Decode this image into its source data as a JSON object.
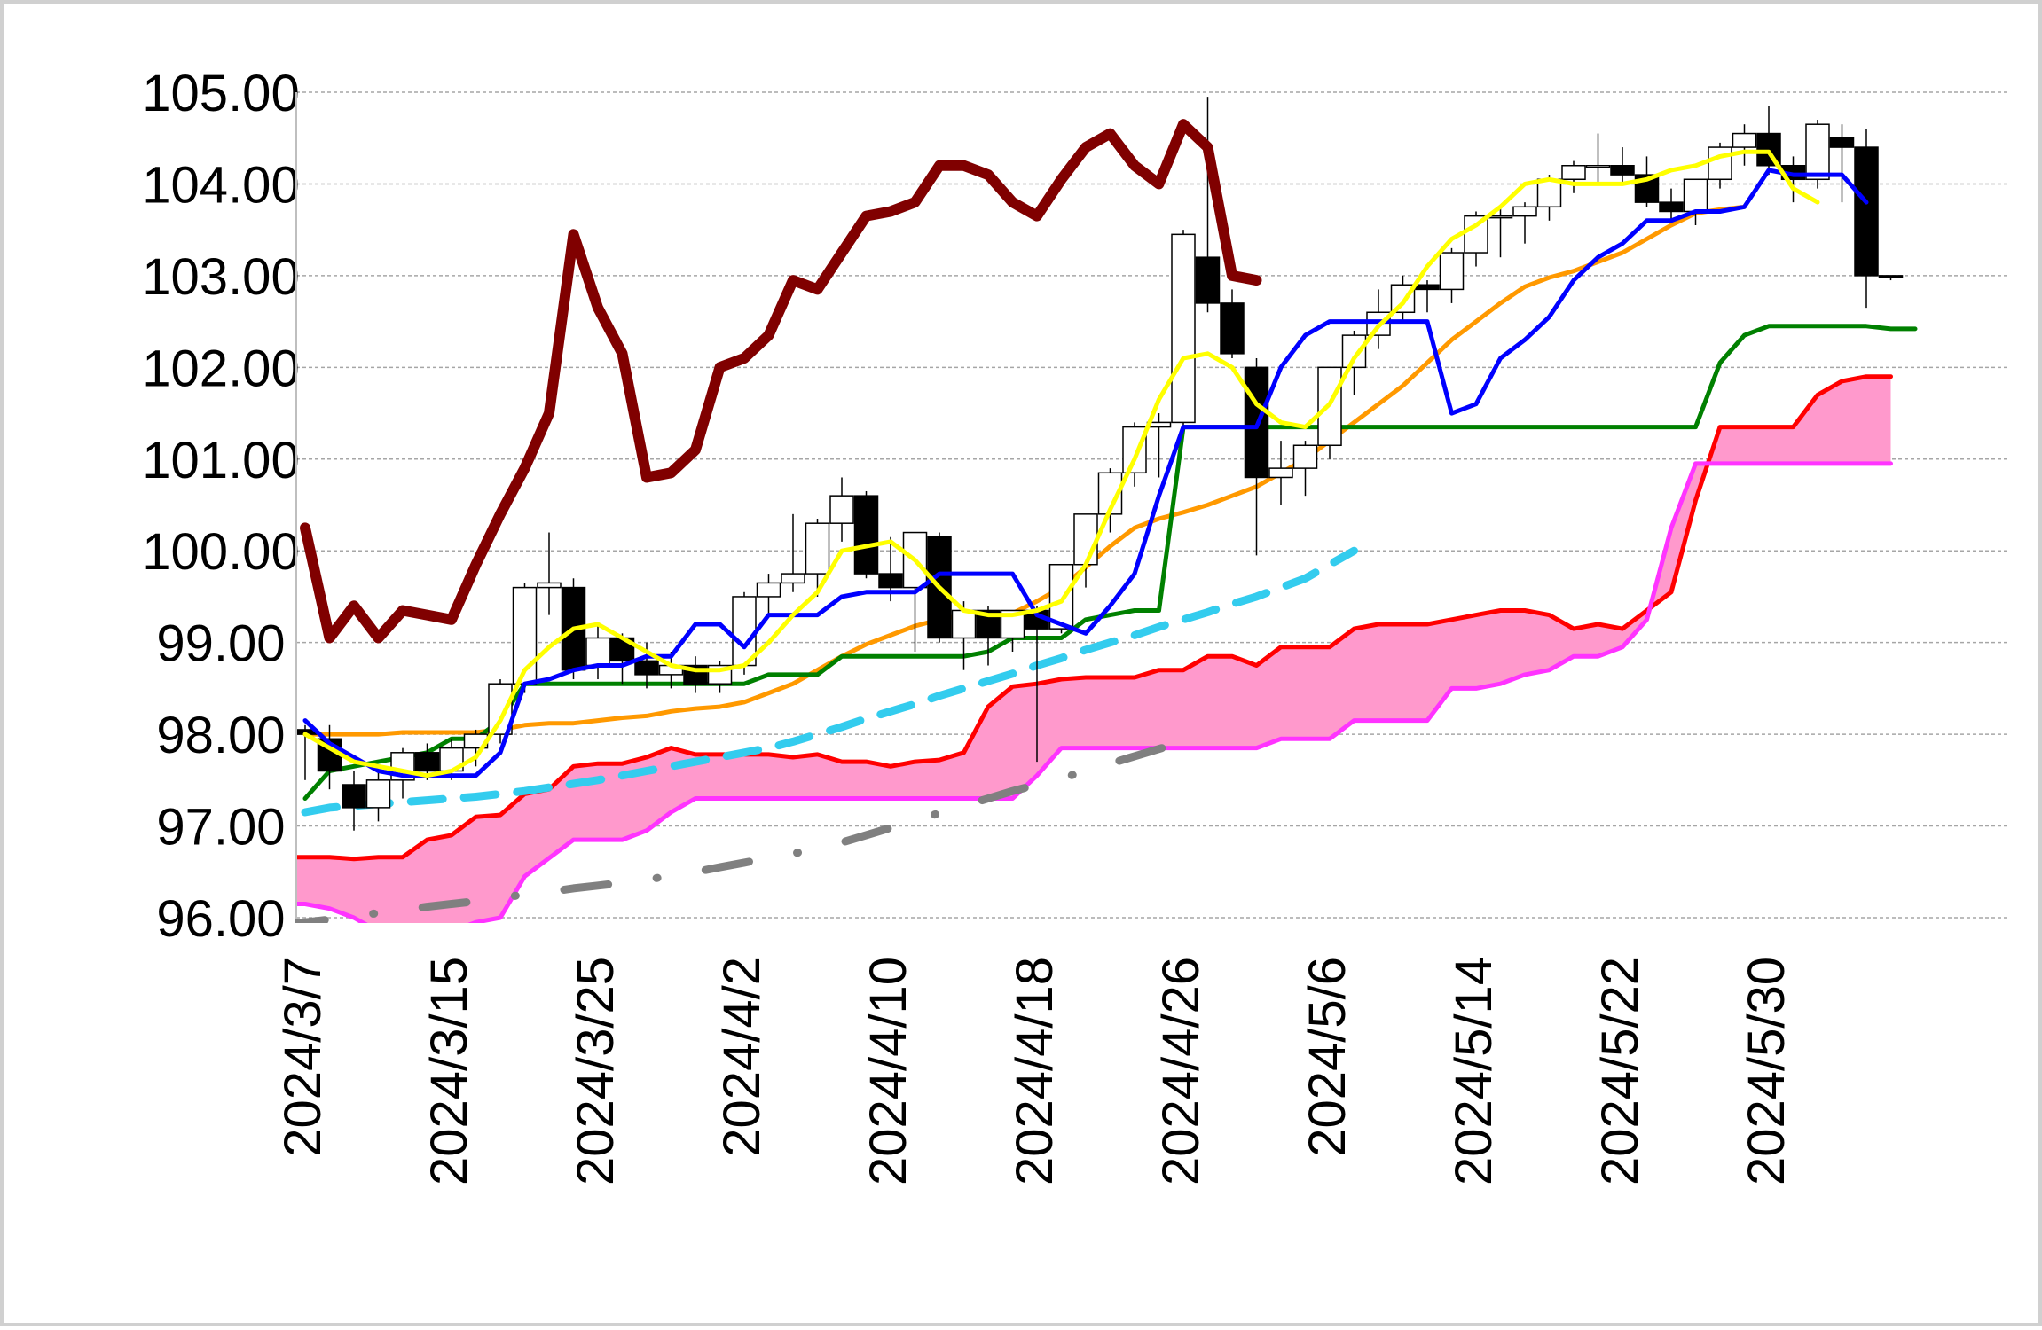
{
  "chart_data": {
    "type": "line",
    "chart_kind": "candlestick with ichimoku cloud and moving averages",
    "y_range": [
      96.0,
      105.0
    ],
    "y_ticks": [
      "105.00",
      "104.00",
      "103.00",
      "102.00",
      "101.00",
      "100.00",
      "99.00",
      "98.00",
      "97.00",
      "96.00"
    ],
    "x_tick_labels": [
      "2024/3/7",
      "2024/3/15",
      "2024/3/25",
      "2024/4/2",
      "2024/4/10",
      "2024/4/18",
      "2024/4/26",
      "2024/5/6",
      "2024/5/14",
      "2024/5/22",
      "2024/5/30"
    ],
    "x_tick_indices": [
      0,
      6,
      12,
      18,
      24,
      30,
      36,
      42,
      48,
      54,
      60
    ],
    "grid": "horizontal dashed",
    "legend": "none",
    "colors": {
      "up_candle": "#ffffff",
      "down_candle": "#000000",
      "candle_edge": "#000000",
      "cloud_fill": "#ff99cc",
      "senkou_a": "#ff0000",
      "senkou_b": "#ff33ff",
      "tenkan": "#0000ff",
      "kijun": "#008000",
      "chikou": "#800000",
      "ma_short": "#ffff00",
      "ma_mid": "#ff9900",
      "ma_cyan": "#33ccee",
      "ma_gray": "#808080"
    },
    "candles": [
      [
        0,
        98.05,
        98.1,
        97.5,
        98.0
      ],
      [
        1,
        97.95,
        98.1,
        97.4,
        97.6
      ],
      [
        2,
        97.45,
        97.6,
        96.95,
        97.2
      ],
      [
        3,
        97.2,
        97.6,
        97.05,
        97.5
      ],
      [
        4,
        97.5,
        97.85,
        97.3,
        97.8
      ],
      [
        5,
        97.8,
        97.9,
        97.5,
        97.6
      ],
      [
        6,
        97.6,
        97.95,
        97.5,
        97.85
      ],
      [
        7,
        97.85,
        98.05,
        97.65,
        98.0
      ],
      [
        8,
        98.0,
        98.6,
        97.9,
        98.55
      ],
      [
        9,
        98.55,
        99.65,
        98.45,
        99.6
      ],
      [
        10,
        99.6,
        100.2,
        99.3,
        99.65
      ],
      [
        11,
        99.6,
        99.7,
        98.6,
        98.7
      ],
      [
        12,
        98.75,
        99.2,
        98.6,
        99.05
      ],
      [
        13,
        99.05,
        99.1,
        98.55,
        98.8
      ],
      [
        14,
        98.8,
        99.0,
        98.5,
        98.65
      ],
      [
        15,
        98.65,
        98.9,
        98.5,
        98.75
      ],
      [
        16,
        98.75,
        98.85,
        98.45,
        98.55
      ],
      [
        17,
        98.55,
        98.8,
        98.45,
        98.75
      ],
      [
        18,
        98.75,
        99.55,
        98.65,
        99.5
      ],
      [
        19,
        99.5,
        99.75,
        99.3,
        99.65
      ],
      [
        20,
        99.65,
        100.4,
        99.55,
        99.75
      ],
      [
        21,
        99.75,
        100.35,
        99.5,
        100.3
      ],
      [
        22,
        100.3,
        100.8,
        100.1,
        100.6
      ],
      [
        23,
        100.6,
        100.65,
        99.7,
        99.75
      ],
      [
        24,
        99.75,
        100.15,
        99.45,
        99.6
      ],
      [
        25,
        99.6,
        100.2,
        98.9,
        100.2
      ],
      [
        26,
        100.15,
        100.2,
        99.0,
        99.05
      ],
      [
        27,
        99.05,
        99.45,
        98.7,
        99.35
      ],
      [
        28,
        99.35,
        99.4,
        98.75,
        99.05
      ],
      [
        29,
        99.05,
        99.35,
        98.9,
        99.35
      ],
      [
        30,
        99.35,
        99.4,
        97.7,
        99.15
      ],
      [
        31,
        99.15,
        99.85,
        99.1,
        99.85
      ],
      [
        32,
        99.85,
        100.4,
        99.6,
        100.4
      ],
      [
        33,
        100.4,
        100.9,
        100.2,
        100.85
      ],
      [
        34,
        100.85,
        101.4,
        100.7,
        101.35
      ],
      [
        35,
        101.35,
        101.5,
        100.8,
        101.4
      ],
      [
        36,
        101.4,
        103.5,
        101.3,
        103.45
      ],
      [
        37,
        103.2,
        104.95,
        102.6,
        102.7
      ],
      [
        38,
        102.7,
        102.85,
        102.1,
        102.15
      ],
      [
        39,
        102.0,
        102.1,
        99.95,
        100.8
      ],
      [
        40,
        100.8,
        101.2,
        100.5,
        100.9
      ],
      [
        41,
        100.9,
        101.2,
        100.6,
        101.15
      ],
      [
        42,
        101.15,
        102.0,
        101.0,
        102.0
      ],
      [
        43,
        102.0,
        102.4,
        101.7,
        102.35
      ],
      [
        44,
        102.35,
        102.85,
        102.2,
        102.6
      ],
      [
        45,
        102.6,
        103.0,
        102.5,
        102.9
      ],
      [
        46,
        102.9,
        102.95,
        102.6,
        102.85
      ],
      [
        47,
        102.85,
        103.3,
        102.7,
        103.25
      ],
      [
        48,
        103.25,
        103.7,
        103.1,
        103.65
      ],
      [
        49,
        103.65,
        103.75,
        103.2,
        103.65
      ],
      [
        50,
        103.65,
        103.8,
        103.35,
        103.75
      ],
      [
        51,
        103.75,
        104.1,
        103.6,
        104.05
      ],
      [
        52,
        104.05,
        104.25,
        103.9,
        104.2
      ],
      [
        53,
        104.2,
        104.55,
        104.0,
        104.2
      ],
      [
        54,
        104.2,
        104.4,
        104.0,
        104.1
      ],
      [
        55,
        104.1,
        104.3,
        103.75,
        103.8
      ],
      [
        56,
        103.8,
        103.95,
        103.6,
        103.7
      ],
      [
        57,
        103.7,
        104.05,
        103.55,
        104.05
      ],
      [
        58,
        104.05,
        104.45,
        103.95,
        104.4
      ],
      [
        59,
        104.4,
        104.65,
        104.2,
        104.55
      ],
      [
        60,
        104.55,
        104.85,
        104.1,
        104.2
      ],
      [
        61,
        104.2,
        104.3,
        103.8,
        104.05
      ],
      [
        62,
        104.05,
        104.7,
        103.95,
        104.65
      ],
      [
        63,
        104.5,
        104.65,
        103.8,
        104.4
      ],
      [
        64,
        104.4,
        104.6,
        102.65,
        103.0
      ],
      [
        65,
        103.0,
        103.0,
        102.95,
        102.98
      ]
    ],
    "series": [
      {
        "key": "chikou",
        "values": [
          100.25,
          99.05,
          99.4,
          99.05,
          99.35,
          99.3,
          99.25,
          99.85,
          100.4,
          100.9,
          101.5,
          103.45,
          102.65,
          102.15,
          100.8,
          100.85,
          101.1,
          102.0,
          102.1,
          102.35,
          102.95,
          102.85,
          103.25,
          103.65,
          103.7,
          103.8,
          104.2,
          104.2,
          104.1,
          103.8,
          103.65,
          104.05,
          104.4,
          104.55,
          104.2,
          104.0,
          104.65,
          104.4,
          103.0,
          102.95
        ]
      },
      {
        "key": "tenkan",
        "values": [
          98.15,
          97.9,
          97.75,
          97.6,
          97.55,
          97.55,
          97.55,
          97.55,
          97.8,
          98.55,
          98.6,
          98.7,
          98.75,
          98.75,
          98.85,
          98.85,
          99.2,
          99.2,
          98.95,
          99.3,
          99.3,
          99.3,
          99.5,
          99.55,
          99.55,
          99.55,
          99.75,
          99.75,
          99.75,
          99.75,
          99.3,
          99.2,
          99.1,
          99.4,
          99.75,
          100.6,
          101.35,
          101.35,
          101.35,
          101.35,
          102.0,
          102.35,
          102.5,
          102.5,
          102.5,
          102.5,
          102.5,
          101.5,
          101.6,
          102.1,
          102.3,
          102.55,
          102.95,
          103.2,
          103.35,
          103.6,
          103.6,
          103.7,
          103.7,
          103.75,
          104.15,
          104.1,
          104.1,
          104.1,
          103.8
        ]
      },
      {
        "key": "kijun",
        "values": [
          97.3,
          97.6,
          97.65,
          97.7,
          97.75,
          97.8,
          97.95,
          97.95,
          98.15,
          98.55,
          98.55,
          98.55,
          98.55,
          98.55,
          98.55,
          98.55,
          98.55,
          98.55,
          98.55,
          98.65,
          98.65,
          98.65,
          98.85,
          98.85,
          98.85,
          98.85,
          98.85,
          98.85,
          98.9,
          99.05,
          99.05,
          99.05,
          99.25,
          99.3,
          99.35,
          99.35,
          101.35,
          101.35,
          101.35,
          101.35,
          101.35,
          101.35,
          101.35,
          101.35,
          101.35,
          101.35,
          101.35,
          101.35,
          101.35,
          101.35,
          101.35,
          101.35,
          101.35,
          101.35,
          101.35,
          101.35,
          101.35,
          101.35,
          102.05,
          102.35,
          102.45,
          102.45,
          102.45,
          102.45,
          102.45,
          102.42,
          102.42
        ]
      },
      {
        "key": "ma_short",
        "values": [
          98.0,
          97.85,
          97.7,
          97.65,
          97.6,
          97.55,
          97.6,
          97.75,
          98.15,
          98.7,
          98.95,
          99.15,
          99.2,
          99.05,
          98.9,
          98.75,
          98.7,
          98.7,
          98.75,
          99.0,
          99.3,
          99.55,
          100.0,
          100.05,
          100.1,
          99.9,
          99.6,
          99.35,
          99.3,
          99.3,
          99.35,
          99.45,
          99.85,
          100.45,
          101.0,
          101.65,
          102.1,
          102.15,
          102.0,
          101.6,
          101.4,
          101.35,
          101.6,
          102.1,
          102.45,
          102.7,
          103.1,
          103.4,
          103.55,
          103.75,
          104.0,
          104.05,
          104.0,
          104.0,
          104.0,
          104.05,
          104.15,
          104.2,
          104.3,
          104.35,
          104.35,
          103.95,
          103.8
        ]
      },
      {
        "key": "ma_mid",
        "values": [
          98.0,
          98.0,
          98.0,
          98.0,
          98.02,
          98.02,
          98.02,
          98.02,
          98.05,
          98.1,
          98.12,
          98.12,
          98.15,
          98.18,
          98.2,
          98.25,
          98.28,
          98.3,
          98.35,
          98.45,
          98.55,
          98.7,
          98.85,
          98.98,
          99.08,
          99.18,
          99.25,
          99.3,
          99.3,
          99.32,
          99.45,
          99.6,
          99.82,
          100.05,
          100.25,
          100.35,
          100.42,
          100.5,
          100.6,
          100.7,
          100.85,
          101.0,
          101.2,
          101.4,
          101.6,
          101.8,
          102.05,
          102.3,
          102.5,
          102.7,
          102.88,
          102.98,
          103.05,
          103.15,
          103.25,
          103.4,
          103.55,
          103.68,
          103.72,
          103.75
        ]
      },
      {
        "key": "ma_cyan",
        "values": [
          97.15,
          97.2,
          97.22,
          97.24,
          97.26,
          97.28,
          97.3,
          97.32,
          97.35,
          97.38,
          97.42,
          97.46,
          97.5,
          97.55,
          97.6,
          97.65,
          97.7,
          97.75,
          97.8,
          97.85,
          97.92,
          98.0,
          98.08,
          98.17,
          98.25,
          98.33,
          98.42,
          98.5,
          98.58,
          98.66,
          98.75,
          98.83,
          98.92,
          99.0,
          99.08,
          99.17,
          99.25,
          99.33,
          99.42,
          99.5,
          99.6,
          99.7,
          99.85,
          100.0
        ]
      },
      {
        "key": "ma_gray",
        "values": [
          95.92,
          95.95,
          95.98,
          96.02,
          96.05,
          96.08,
          96.12,
          96.15,
          96.18,
          96.22,
          96.25,
          96.28,
          96.32,
          96.35,
          96.38,
          96.42,
          96.45,
          96.5,
          96.55,
          96.6,
          96.65,
          96.7,
          96.75,
          96.82,
          96.9,
          96.98,
          97.06,
          97.14,
          97.22,
          97.3,
          97.38,
          97.45,
          97.52,
          97.6,
          97.68,
          97.76,
          97.84,
          97.92
        ]
      },
      {
        "key": "senkou_a",
        "values": [
          96.7,
          96.68,
          96.66,
          96.66,
          96.66,
          96.66,
          96.64,
          96.66,
          96.66,
          96.85,
          96.9,
          97.1,
          97.12,
          97.35,
          97.4,
          97.65,
          97.68,
          97.68,
          97.75,
          97.85,
          97.78,
          97.78,
          97.78,
          97.78,
          97.75,
          97.78,
          97.7,
          97.7,
          97.65,
          97.7,
          97.72,
          97.8,
          98.3,
          98.52,
          98.55,
          98.6,
          98.62,
          98.62,
          98.62,
          98.7,
          98.7,
          98.85,
          98.85,
          98.75,
          98.95,
          98.95,
          98.95,
          99.15,
          99.2,
          99.2,
          99.2,
          99.25,
          99.3,
          99.35,
          99.35,
          99.3,
          99.15,
          99.2,
          99.15,
          99.35,
          99.55,
          100.55,
          101.35,
          101.35,
          101.35,
          101.35,
          101.7,
          101.85,
          101.9,
          101.9
        ]
      },
      {
        "key": "senkou_b",
        "values": [
          96.15,
          96.15,
          96.15,
          96.15,
          96.15,
          96.1,
          96.0,
          95.85,
          95.85,
          95.85,
          95.85,
          95.95,
          96.0,
          96.45,
          96.65,
          96.85,
          96.85,
          96.85,
          96.95,
          97.15,
          97.3,
          97.3,
          97.3,
          97.3,
          97.3,
          97.3,
          97.3,
          97.3,
          97.3,
          97.3,
          97.3,
          97.3,
          97.3,
          97.3,
          97.55,
          97.85,
          97.85,
          97.85,
          97.85,
          97.85,
          97.85,
          97.85,
          97.85,
          97.85,
          97.95,
          97.95,
          97.95,
          98.15,
          98.15,
          98.15,
          98.15,
          98.5,
          98.5,
          98.55,
          98.65,
          98.7,
          98.85,
          98.85,
          98.95,
          99.25,
          100.25,
          100.95,
          100.95,
          100.95,
          100.95,
          100.95,
          100.95,
          100.95,
          100.95,
          100.95
        ]
      }
    ]
  }
}
